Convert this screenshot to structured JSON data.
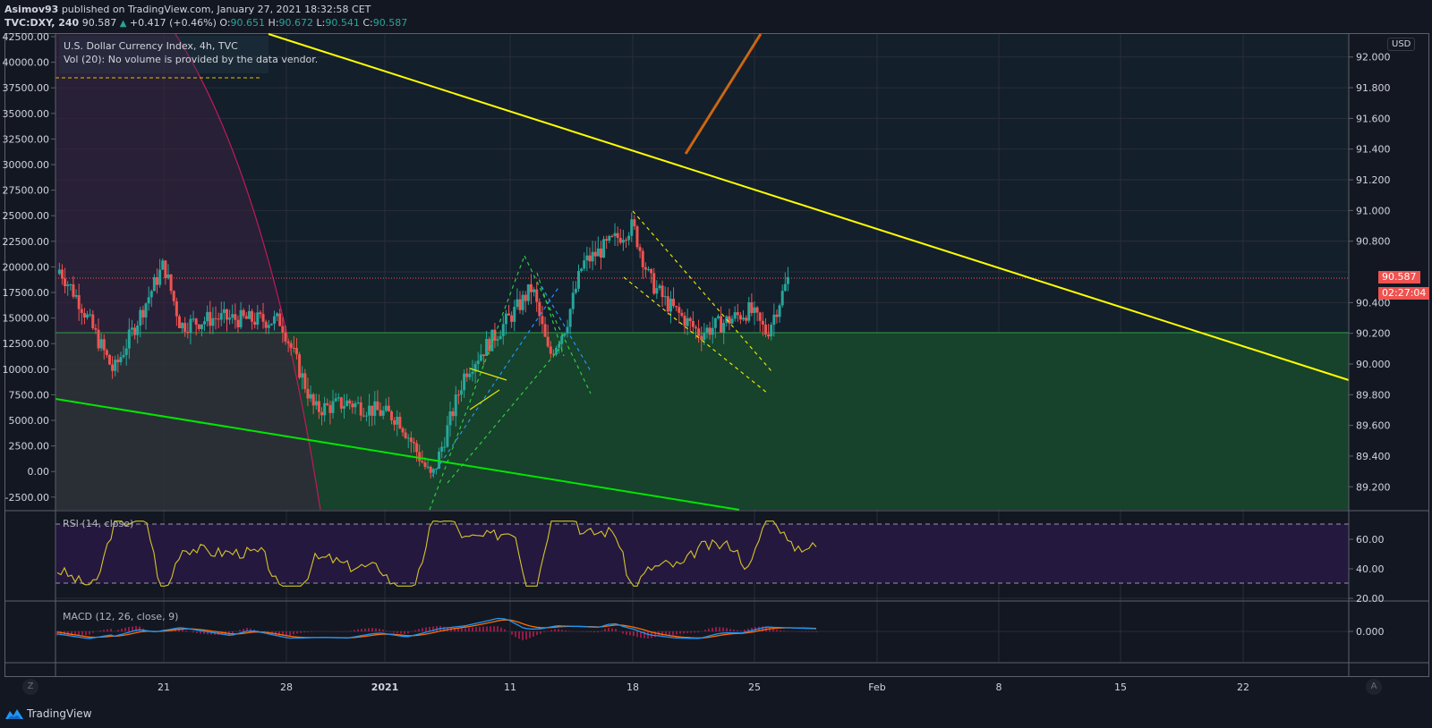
{
  "header": {
    "publisher": "Asimov93",
    "published_text": "published on TradingView.com, January 27, 2021 18:32:58 CET",
    "symbol": "TVC:DXY, 240",
    "last": "90.587",
    "change": "+0.417 (+0.46%)",
    "o_label": "O:",
    "o": "90.651",
    "h_label": "H:",
    "h": "90.672",
    "l_label": "L:",
    "l": "90.541",
    "c_label": "C:",
    "c": "90.587"
  },
  "legend": {
    "title": "U.S. Dollar Currency Index, 4h, TVC",
    "volume": "Vol (20): No volume is provided by the data vendor."
  },
  "price_scale": {
    "currency": "USD",
    "ticks": [
      "92.000",
      "91.800",
      "91.600",
      "91.400",
      "91.200",
      "91.000",
      "90.800",
      "90.400",
      "90.200",
      "90.000",
      "89.800",
      "89.600",
      "89.400",
      "89.200"
    ],
    "last_price_label": "90.587",
    "countdown_label": "02:27:04"
  },
  "left_scale": {
    "ticks": [
      "42500.00",
      "40000.00",
      "37500.00",
      "35000.00",
      "32500.00",
      "30000.00",
      "27500.00",
      "25000.00",
      "22500.00",
      "20000.00",
      "17500.00",
      "15000.00",
      "12500.00",
      "10000.00",
      "7500.00",
      "5000.00",
      "2500.00",
      "0.00",
      "-2500.00"
    ]
  },
  "rsi": {
    "label": "RSI (14, close)",
    "ticks": [
      "60.00",
      "40.00",
      "20.00"
    ]
  },
  "macd": {
    "label": "MACD (12, 26, close, 9)",
    "ticks": [
      "0.000"
    ]
  },
  "time_axis": {
    "ticks": [
      "21",
      "28",
      "2021",
      "11",
      "18",
      "25",
      "Feb",
      "8",
      "15",
      "22"
    ]
  },
  "buttons": {
    "left": "Z",
    "right": "A"
  },
  "footer": {
    "brand": "TradingView"
  },
  "colors": {
    "up": "#26a69a",
    "down": "#ef5350",
    "trend_yellow": "#ffff00",
    "trend_green": "#00e600",
    "rsi_line": "#d6c42a",
    "macd_line": "#2196f3",
    "signal_line": "#ff6d00",
    "histogram": "#e91e63",
    "zone_green": "#1d4a2e",
    "zone_purple": "#2a2140"
  },
  "chart_data": {
    "type": "candlestick",
    "title": "U.S. Dollar Currency Index, 4h, TVC",
    "symbol": "TVC:DXY",
    "interval": "240",
    "ylim": [
      89.05,
      92.15
    ],
    "x_ticks": [
      "21",
      "28",
      "2021",
      "11",
      "18",
      "25",
      "Feb",
      "8",
      "15",
      "22"
    ],
    "y_ticks": [
      89.2,
      89.4,
      89.6,
      89.8,
      90.0,
      90.2,
      90.4,
      90.6,
      90.8,
      91.0,
      91.2,
      91.4,
      91.6,
      91.8,
      92.0
    ],
    "last_price": 90.587,
    "ohlc_last": {
      "open": 90.651,
      "high": 90.672,
      "low": 90.541,
      "close": 90.587
    },
    "change": 0.417,
    "change_pct": 0.46,
    "horizontal_level": 90.23,
    "approx_close_path": [
      {
        "date": "Dec 14",
        "close": 90.75
      },
      {
        "date": "Dec 16",
        "close": 90.4
      },
      {
        "date": "Dec 18",
        "close": 89.95
      },
      {
        "date": "Dec 21",
        "close": 90.65
      },
      {
        "date": "Dec 22",
        "close": 90.25
      },
      {
        "date": "Dec 24",
        "close": 90.3
      },
      {
        "date": "Dec 28",
        "close": 90.28
      },
      {
        "date": "Dec 30",
        "close": 89.7
      },
      {
        "date": "Jan 1",
        "close": 89.75
      },
      {
        "date": "Jan 4",
        "close": 89.65
      },
      {
        "date": "Jan 6",
        "close": 89.25
      },
      {
        "date": "Jan 8",
        "close": 89.95
      },
      {
        "date": "Jan 11",
        "close": 90.35
      },
      {
        "date": "Jan 12",
        "close": 90.5
      },
      {
        "date": "Jan 13",
        "close": 90.05
      },
      {
        "date": "Jan 14",
        "close": 90.25
      },
      {
        "date": "Jan 15",
        "close": 90.65
      },
      {
        "date": "Jan 18",
        "close": 90.9
      },
      {
        "date": "Jan 19",
        "close": 90.55
      },
      {
        "date": "Jan 20",
        "close": 90.4
      },
      {
        "date": "Jan 22",
        "close": 90.2
      },
      {
        "date": "Jan 25",
        "close": 90.35
      },
      {
        "date": "Jan 26",
        "close": 90.2
      },
      {
        "date": "Jan 27",
        "close": 90.587
      }
    ],
    "indicators": {
      "rsi": {
        "length": 14,
        "source": "close",
        "bands": [
          30,
          70
        ],
        "ylim": [
          18,
          72
        ]
      },
      "macd": {
        "fast": 12,
        "slow": 26,
        "source": "close",
        "signal": 9
      }
    }
  }
}
